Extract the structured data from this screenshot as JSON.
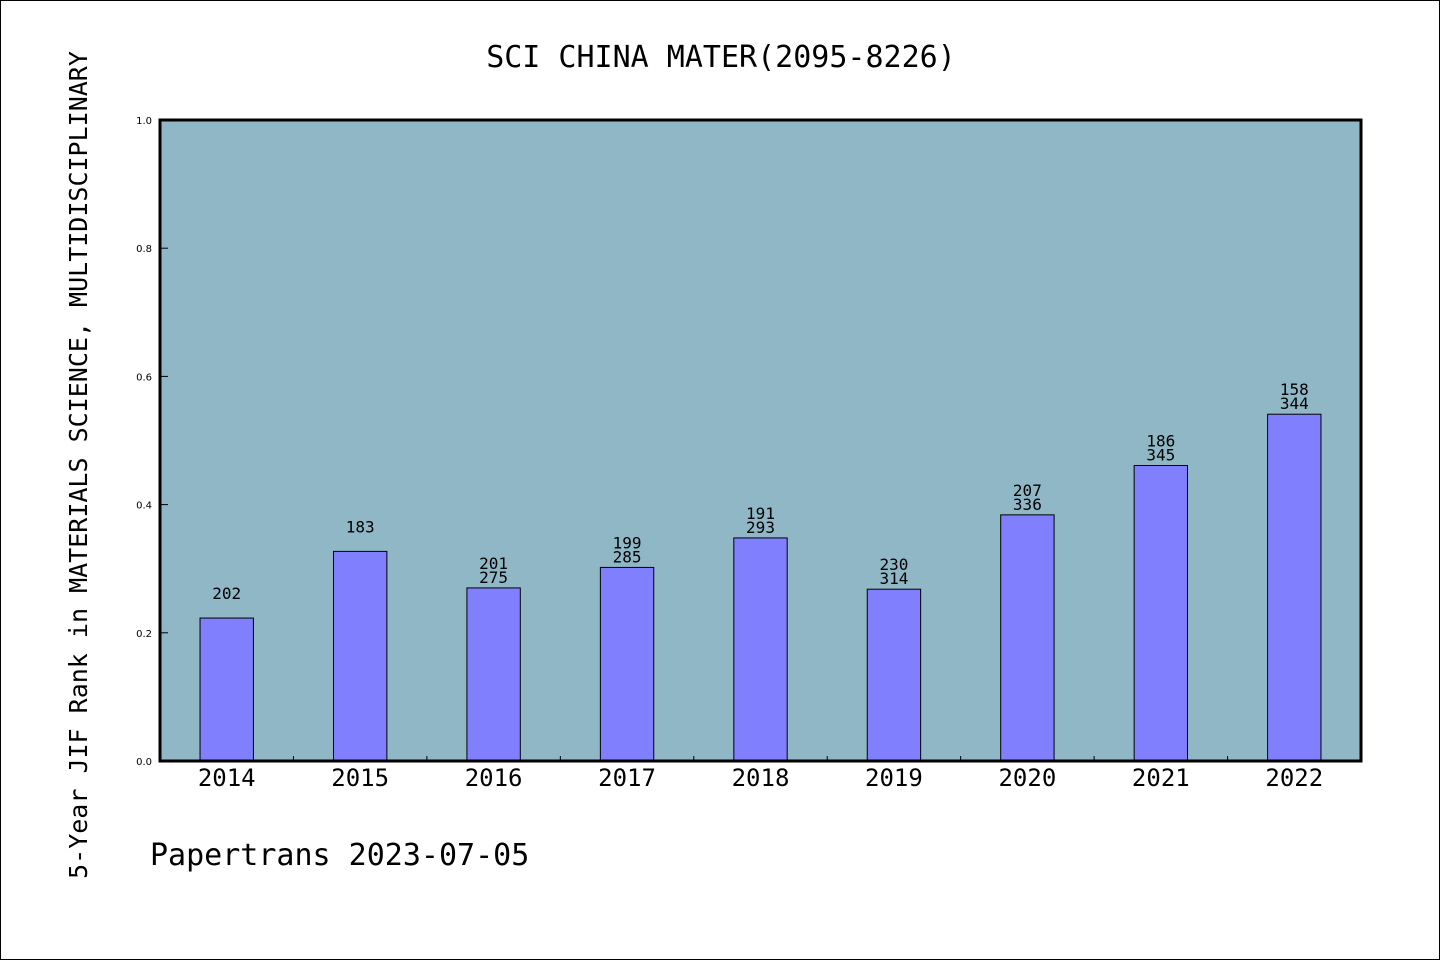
{
  "chart_data": {
    "type": "bar",
    "title": "SCI CHINA MATER(2095-8226)",
    "ylabel": "5-Year JIF Rank in MATERIALS SCIENCE, MULTIDISCIPLINARY",
    "xlabel": "",
    "ylim": [
      0,
      1.0
    ],
    "yticks": [
      "0.0",
      "0.2",
      "0.4",
      "0.6",
      "0.8",
      "1.0"
    ],
    "grid": false,
    "categories": [
      "2014",
      "2015",
      "2016",
      "2017",
      "2018",
      "2019",
      "2020",
      "2021",
      "2022"
    ],
    "values": [
      0.223,
      0.327,
      0.27,
      0.302,
      0.348,
      0.268,
      0.384,
      0.461,
      0.541
    ],
    "labels": [
      [
        "202"
      ],
      [
        "183"
      ],
      [
        "201",
        "275"
      ],
      [
        "199",
        "285"
      ],
      [
        "191",
        "293"
      ],
      [
        "230",
        "314"
      ],
      [
        "207",
        "336"
      ],
      [
        "186",
        "345"
      ],
      [
        "158",
        "344"
      ]
    ],
    "colors": {
      "plot_bg": "#8fb7c5",
      "bar": "#8080ff",
      "bar_edge": "#000000"
    }
  },
  "footer": "Papertrans 2023-07-05"
}
